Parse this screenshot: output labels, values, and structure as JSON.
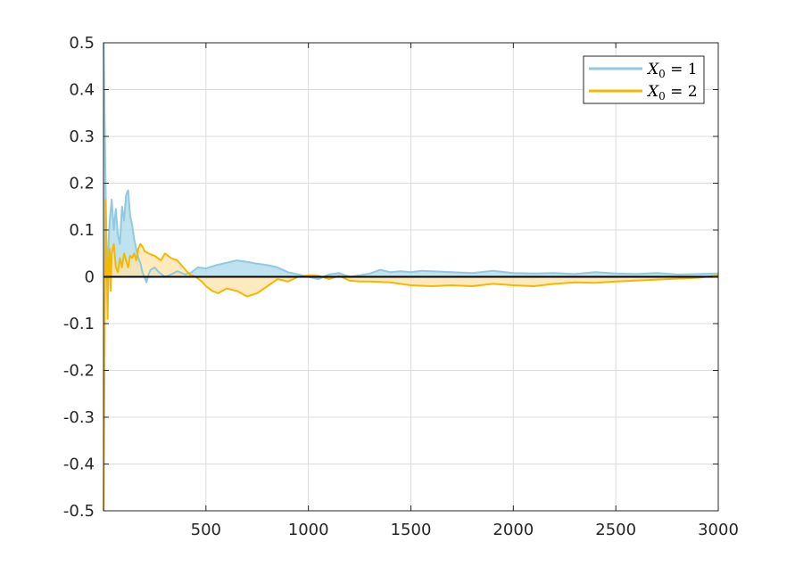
{
  "chart_data": {
    "type": "line",
    "title": "",
    "xlabel": "",
    "ylabel": "",
    "xlim": [
      0,
      3000
    ],
    "ylim": [
      -0.5,
      0.5
    ],
    "xticks": [
      500,
      1000,
      1500,
      2000,
      2500,
      3000
    ],
    "yticks": [
      -0.5,
      -0.4,
      -0.3,
      -0.2,
      -0.1,
      0,
      0.1,
      0.2,
      0.3,
      0.4,
      0.5
    ],
    "xtick_labels": [
      "500",
      "1000",
      "1500",
      "2000",
      "2500",
      "3000"
    ],
    "ytick_labels": [
      "-0.5",
      "-0.4",
      "-0.3",
      "-0.2",
      "-0.1",
      "0",
      "0.1",
      "0.2",
      "0.3",
      "0.4",
      "0.5"
    ],
    "grid": true,
    "legend_position": "top-right",
    "zero_line": true,
    "fill_to_zero": true,
    "series": [
      {
        "name": "X_0 = 1",
        "legend_var": "X",
        "legend_sub": "0",
        "legend_rhs": " = 1",
        "color": "#92c9e0",
        "fill": "#a8d8e8",
        "x": [
          1,
          5,
          10,
          15,
          20,
          25,
          30,
          40,
          50,
          60,
          70,
          80,
          90,
          100,
          110,
          120,
          130,
          140,
          150,
          160,
          170,
          180,
          190,
          200,
          210,
          220,
          230,
          250,
          270,
          300,
          330,
          360,
          400,
          430,
          460,
          500,
          550,
          600,
          650,
          700,
          750,
          800,
          850,
          900,
          950,
          1000,
          1050,
          1100,
          1150,
          1200,
          1250,
          1300,
          1350,
          1400,
          1450,
          1500,
          1550,
          1600,
          1700,
          1800,
          1900,
          2000,
          2100,
          2200,
          2300,
          2400,
          2500,
          2600,
          2700,
          2800,
          2900,
          3000
        ],
        "y": [
          0.5,
          0.37,
          0.2,
          0.06,
          0.02,
          0.07,
          0.12,
          0.165,
          0.1,
          0.145,
          0.09,
          0.07,
          0.15,
          0.12,
          0.175,
          0.185,
          0.13,
          0.11,
          0.08,
          0.06,
          0.04,
          0.03,
          0.01,
          0.0,
          -0.012,
          0.005,
          0.015,
          0.02,
          0.01,
          0.0,
          0.005,
          0.012,
          0.005,
          0.01,
          0.02,
          0.018,
          0.025,
          0.03,
          0.035,
          0.032,
          0.028,
          0.025,
          0.02,
          0.01,
          0.005,
          0.0,
          -0.005,
          0.005,
          0.008,
          0.0,
          0.003,
          0.007,
          0.015,
          0.01,
          0.012,
          0.01,
          0.013,
          0.012,
          0.01,
          0.008,
          0.013,
          0.008,
          0.007,
          0.008,
          0.006,
          0.01,
          0.007,
          0.006,
          0.008,
          0.005,
          0.006,
          0.007
        ]
      },
      {
        "name": "X_0 = 2",
        "legend_var": "X",
        "legend_sub": "0",
        "legend_rhs": " = 2",
        "color": "#f5b800",
        "fill": "#fde3a7",
        "x": [
          1,
          5,
          10,
          15,
          20,
          25,
          30,
          35,
          40,
          50,
          60,
          70,
          80,
          90,
          100,
          110,
          120,
          130,
          140,
          150,
          160,
          170,
          180,
          190,
          200,
          220,
          250,
          280,
          300,
          330,
          360,
          390,
          420,
          450,
          480,
          500,
          530,
          560,
          600,
          650,
          700,
          750,
          800,
          850,
          900,
          950,
          1000,
          1050,
          1100,
          1150,
          1200,
          1250,
          1300,
          1400,
          1500,
          1600,
          1700,
          1800,
          1900,
          2000,
          2100,
          2200,
          2300,
          2400,
          2500,
          2600,
          2700,
          2800,
          2900,
          3000
        ],
        "y": [
          -0.5,
          -0.2,
          0.165,
          0.06,
          -0.09,
          0.04,
          0.06,
          -0.03,
          0.05,
          0.07,
          0.02,
          0.01,
          0.04,
          0.02,
          0.05,
          0.035,
          0.02,
          0.045,
          0.04,
          0.05,
          0.035,
          0.06,
          0.07,
          0.065,
          0.055,
          0.05,
          0.045,
          0.035,
          0.05,
          0.04,
          0.035,
          0.02,
          0.005,
          0.0,
          -0.01,
          -0.02,
          -0.03,
          -0.035,
          -0.025,
          -0.03,
          -0.042,
          -0.035,
          -0.02,
          -0.005,
          -0.01,
          0.0,
          0.003,
          0.002,
          -0.005,
          0.002,
          -0.008,
          -0.01,
          -0.01,
          -0.012,
          -0.018,
          -0.02,
          -0.018,
          -0.02,
          -0.015,
          -0.018,
          -0.02,
          -0.015,
          -0.012,
          -0.013,
          -0.01,
          -0.008,
          -0.006,
          -0.004,
          -0.002,
          0.003
        ]
      }
    ]
  }
}
